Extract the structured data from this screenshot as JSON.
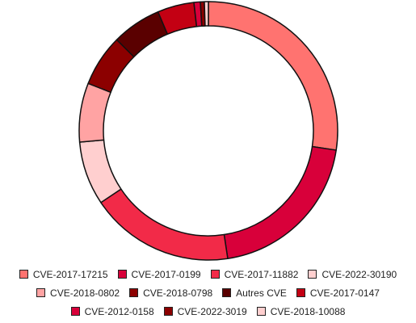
{
  "chart_data": {
    "type": "pie",
    "title": "",
    "legend_position": "bottom",
    "slices": [
      {
        "label": "CVE-2017-17215",
        "value": 27.5,
        "color": "#ff7370"
      },
      {
        "label": "CVE-2017-0199",
        "value": 20.3,
        "color": "#d8003a"
      },
      {
        "label": "CVE-2017-11882",
        "value": 18.1,
        "color": "#f22a48"
      },
      {
        "label": "CVE-2022-30190",
        "value": 8.0,
        "color": "#ffcfcf"
      },
      {
        "label": "CVE-2018-0802",
        "value": 7.4,
        "color": "#ffa3a3"
      },
      {
        "label": "CVE-2018-0798",
        "value": 6.5,
        "color": "#8c0000"
      },
      {
        "label": "Autres CVE",
        "value": 6.2,
        "color": "#5a0000"
      },
      {
        "label": "CVE-2017-0147",
        "value": 4.6,
        "color": "#c30013"
      },
      {
        "label": "CVE-2012-0158",
        "value": 0.8,
        "color": "#d8003a"
      },
      {
        "label": "CVE-2022-3019",
        "value": 0.5,
        "color": "#8c0000"
      },
      {
        "label": "CVE-2018-10088",
        "value": 0.5,
        "color": "#ffcfcf"
      }
    ]
  }
}
